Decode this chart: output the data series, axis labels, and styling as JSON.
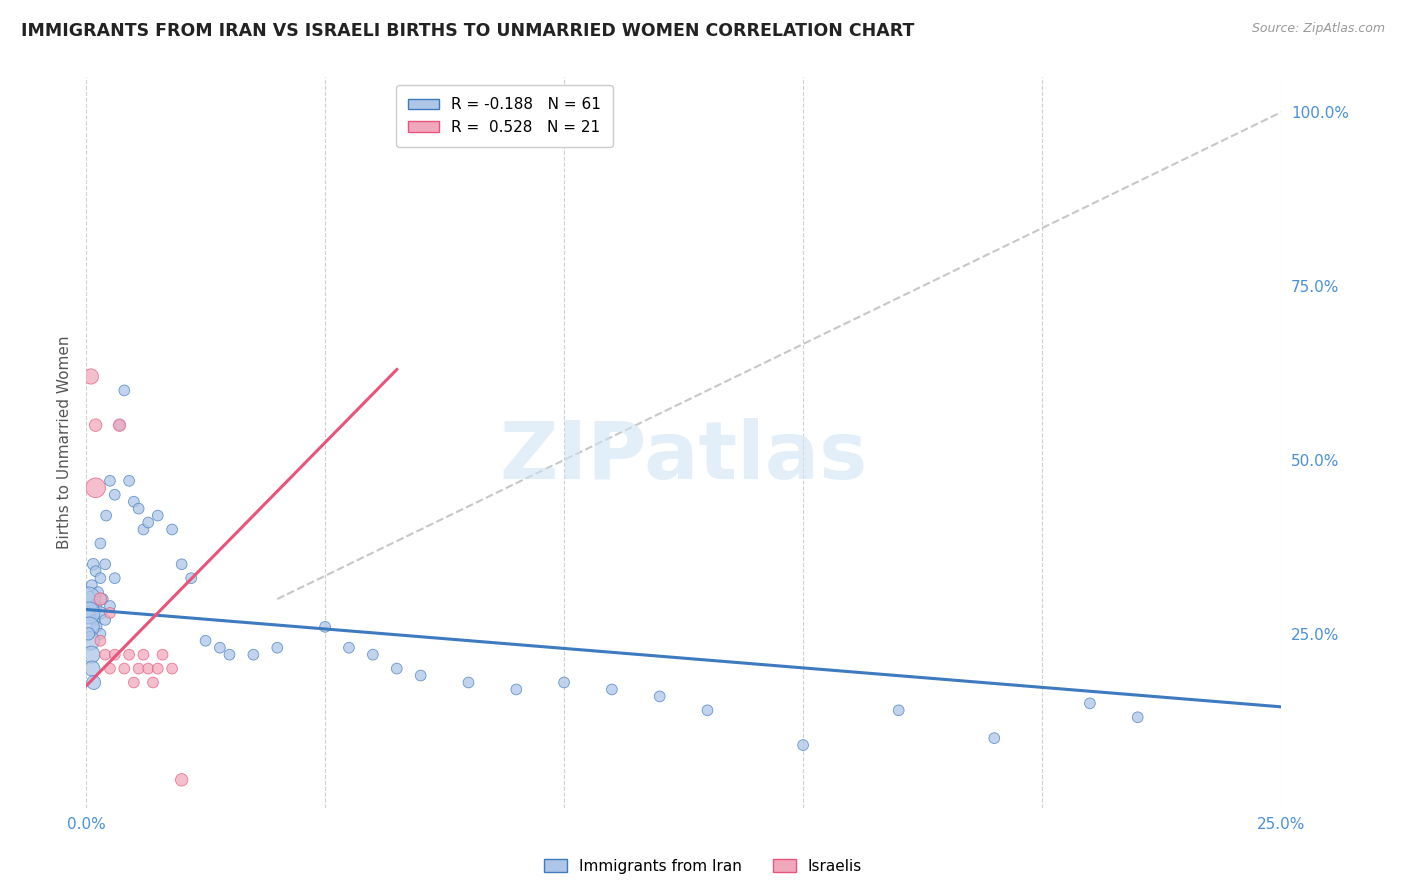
{
  "title": "IMMIGRANTS FROM IRAN VS ISRAELI BIRTHS TO UNMARRIED WOMEN CORRELATION CHART",
  "source": "Source: ZipAtlas.com",
  "ylabel": "Births to Unmarried Women",
  "ylabel_right_labels": [
    "100.0%",
    "75.0%",
    "50.0%",
    "25.0%"
  ],
  "ylabel_right_values": [
    1.0,
    0.75,
    0.5,
    0.25
  ],
  "legend_blue_r": "-0.188",
  "legend_blue_n": "61",
  "legend_pink_r": "0.528",
  "legend_pink_n": "21",
  "legend_blue_label": "Immigrants from Iran",
  "legend_pink_label": "Israelis",
  "blue_color": "#aec6e8",
  "pink_color": "#f2a8bc",
  "line_blue_color": "#3d7abf",
  "line_pink_color": "#e8547a",
  "ref_line_color": "#b0b0b0",
  "watermark": "ZIPatlas",
  "xlim": [
    0.0,
    0.25
  ],
  "ylim": [
    0.0,
    1.05
  ],
  "blue_x": [
    0.0008,
    0.001,
    0.0012,
    0.0015,
    0.0018,
    0.002,
    0.002,
    0.0022,
    0.0025,
    0.003,
    0.003,
    0.003,
    0.003,
    0.0035,
    0.004,
    0.004,
    0.0042,
    0.005,
    0.005,
    0.006,
    0.006,
    0.007,
    0.008,
    0.009,
    0.01,
    0.011,
    0.012,
    0.013,
    0.015,
    0.018,
    0.02,
    0.022,
    0.025,
    0.028,
    0.03,
    0.035,
    0.04,
    0.05,
    0.055,
    0.06,
    0.065,
    0.07,
    0.08,
    0.09,
    0.1,
    0.11,
    0.12,
    0.13,
    0.15,
    0.17,
    0.19,
    0.21,
    0.22,
    0.0005,
    0.0006,
    0.0007,
    0.0009,
    0.0011,
    0.0013,
    0.0016,
    0.0005
  ],
  "blue_y": [
    0.3,
    0.28,
    0.32,
    0.35,
    0.27,
    0.29,
    0.34,
    0.26,
    0.31,
    0.28,
    0.33,
    0.38,
    0.25,
    0.3,
    0.27,
    0.35,
    0.42,
    0.29,
    0.47,
    0.33,
    0.45,
    0.55,
    0.6,
    0.47,
    0.44,
    0.43,
    0.4,
    0.41,
    0.42,
    0.4,
    0.35,
    0.33,
    0.24,
    0.23,
    0.22,
    0.22,
    0.23,
    0.26,
    0.23,
    0.22,
    0.2,
    0.19,
    0.18,
    0.17,
    0.18,
    0.17,
    0.16,
    0.14,
    0.09,
    0.14,
    0.1,
    0.15,
    0.13,
    0.3,
    0.28,
    0.26,
    0.24,
    0.22,
    0.2,
    0.18,
    0.25
  ],
  "blue_size": [
    120,
    80,
    60,
    70,
    60,
    80,
    60,
    60,
    60,
    80,
    60,
    60,
    60,
    60,
    60,
    60,
    60,
    60,
    60,
    60,
    60,
    60,
    60,
    60,
    60,
    60,
    60,
    60,
    60,
    60,
    60,
    60,
    60,
    60,
    60,
    60,
    60,
    60,
    60,
    60,
    60,
    60,
    60,
    60,
    60,
    60,
    60,
    60,
    60,
    60,
    60,
    60,
    60,
    300,
    250,
    200,
    180,
    150,
    120,
    100,
    80
  ],
  "pink_x": [
    0.001,
    0.002,
    0.002,
    0.003,
    0.003,
    0.004,
    0.005,
    0.005,
    0.006,
    0.007,
    0.008,
    0.009,
    0.01,
    0.011,
    0.012,
    0.013,
    0.014,
    0.015,
    0.016,
    0.018,
    0.02
  ],
  "pink_y": [
    0.62,
    0.46,
    0.55,
    0.3,
    0.24,
    0.22,
    0.28,
    0.2,
    0.22,
    0.55,
    0.2,
    0.22,
    0.18,
    0.2,
    0.22,
    0.2,
    0.18,
    0.2,
    0.22,
    0.2,
    0.04
  ],
  "pink_size": [
    120,
    200,
    80,
    80,
    60,
    60,
    60,
    60,
    60,
    80,
    60,
    60,
    60,
    60,
    60,
    60,
    60,
    60,
    60,
    60,
    80
  ],
  "blue_line_x": [
    0.0,
    0.25
  ],
  "blue_line_y": [
    0.285,
    0.145
  ],
  "pink_line_x": [
    0.0,
    0.065
  ],
  "pink_line_y": [
    0.175,
    0.63
  ],
  "ref_line_x": [
    0.04,
    0.25
  ],
  "ref_line_y": [
    0.3,
    1.0
  ]
}
